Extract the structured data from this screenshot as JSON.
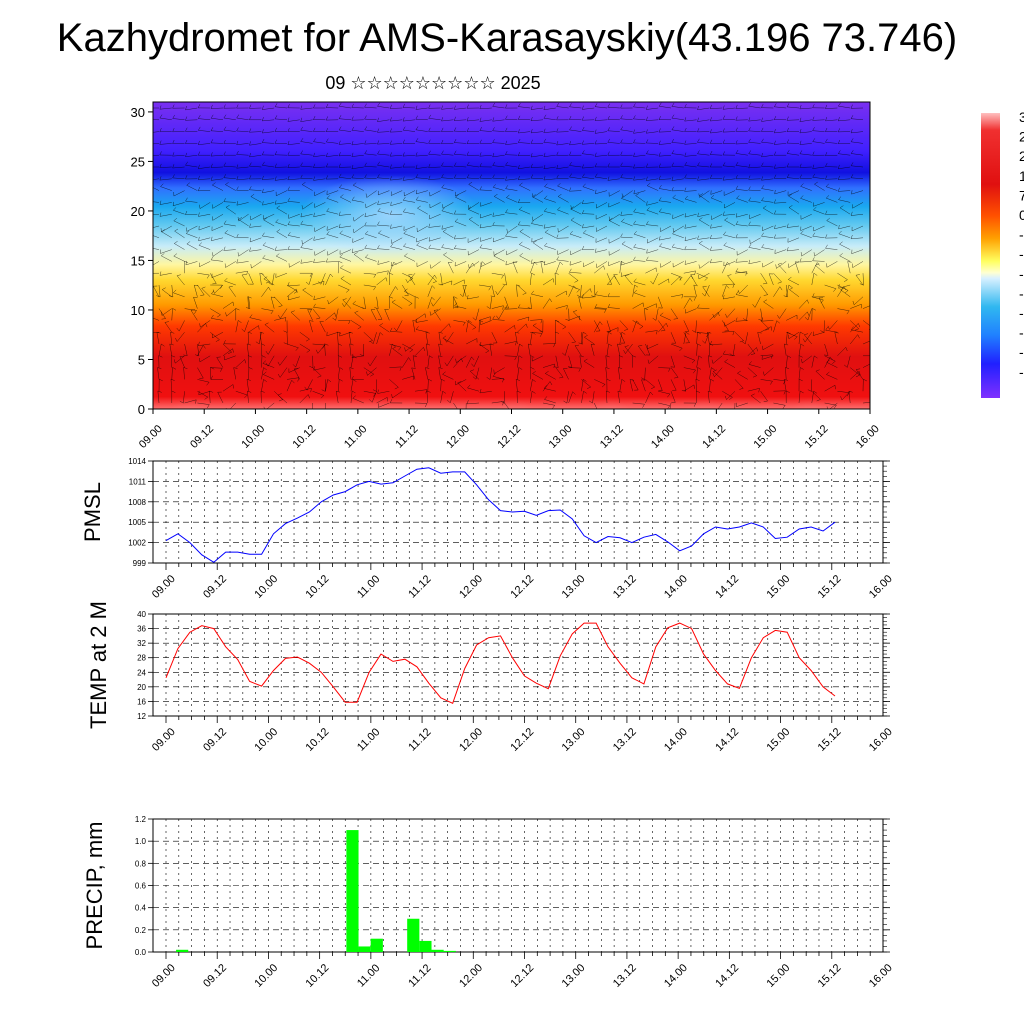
{
  "title": "Kazhydromet for AMS-Karasayskiy(43.196 73.746)",
  "date_line": "09 ☆☆☆☆☆☆☆☆☆ 2025",
  "colors": {
    "pmsl_line": "#0000ff",
    "temp_line": "#ff0000",
    "precip_bar": "#00ff00",
    "grid": "#000000"
  },
  "chart_data": [
    {
      "id": "section",
      "type": "heatmap",
      "x_ticks": [
        "09.00",
        "09.12",
        "10.00",
        "10.12",
        "11.00",
        "11.12",
        "12.00",
        "12.12",
        "13.00",
        "13.12",
        "14.00",
        "14.12",
        "15.00",
        "15.12",
        "16.00"
      ],
      "y_ticks": [
        "0",
        "5",
        "10",
        "15",
        "20",
        "25",
        "30"
      ],
      "ylim": [
        0,
        31
      ],
      "colorbar_labels": [
        "3",
        "2",
        "2",
        "1",
        "7",
        "0",
        "-",
        "-",
        "-",
        "-",
        "-",
        "-",
        "-",
        "-"
      ]
    },
    {
      "id": "pmsl",
      "type": "line",
      "ylabel": "PMSL",
      "ylim": [
        999,
        1014
      ],
      "y_ticks": [
        "999",
        "1002",
        "1005",
        "1008",
        "1011",
        "1014"
      ],
      "x_ticks": [
        "09.00",
        "09.12",
        "10.00",
        "10.12",
        "11.00",
        "11.12",
        "12.00",
        "12.12",
        "13.00",
        "13.12",
        "14.00",
        "14.12",
        "15.00",
        "15.12",
        "16.00"
      ],
      "values": [
        1002.3,
        1003.3,
        1002.0,
        1000.2,
        999.1,
        1000.6,
        1000.6,
        1000.3,
        1000.3,
        1003.3,
        1004.8,
        1005.6,
        1006.5,
        1008.0,
        1009.0,
        1009.5,
        1010.5,
        1011.0,
        1010.6,
        1010.8,
        1011.8,
        1012.8,
        1013.0,
        1012.2,
        1012.4,
        1012.4,
        1010.5,
        1008.3,
        1006.7,
        1006.5,
        1006.6,
        1006.0,
        1006.7,
        1006.8,
        1005.5,
        1003.0,
        1002.0,
        1002.9,
        1002.7,
        1002.0,
        1002.8,
        1003.2,
        1002.1,
        1000.8,
        1001.5,
        1003.3,
        1004.3,
        1004.0,
        1004.3,
        1004.9,
        1004.3,
        1002.6,
        1002.8,
        1004.0,
        1004.3,
        1003.7,
        1005.0
      ]
    },
    {
      "id": "temp",
      "type": "line",
      "ylabel": "TEMP at 2 M",
      "ylim": [
        12,
        40
      ],
      "y_ticks": [
        "12",
        "16",
        "20",
        "24",
        "28",
        "32",
        "36",
        "40"
      ],
      "x_ticks": [
        "09.00",
        "09.12",
        "10.00",
        "10.12",
        "11.00",
        "11.12",
        "12.00",
        "12.12",
        "13.00",
        "13.12",
        "14.00",
        "14.12",
        "15.00",
        "15.12",
        "16.00"
      ],
      "values": [
        22.5,
        30.5,
        35.0,
        36.8,
        36.0,
        31.0,
        27.5,
        21.5,
        20.2,
        24.5,
        27.8,
        28.2,
        26.5,
        24.0,
        20.0,
        15.8,
        15.8,
        24.0,
        29.0,
        27.0,
        27.6,
        25.5,
        21.0,
        17.0,
        15.5,
        25.0,
        31.5,
        33.5,
        34.0,
        28.0,
        23.0,
        21.0,
        19.5,
        28.5,
        34.5,
        37.5,
        37.5,
        31.0,
        26.5,
        22.5,
        20.8,
        31.0,
        36.2,
        37.5,
        36.0,
        29.0,
        24.5,
        20.8,
        19.6,
        28.0,
        33.5,
        35.5,
        35.0,
        28.0,
        24.5,
        20.0,
        17.5
      ]
    },
    {
      "id": "precip",
      "type": "bar",
      "ylabel": "PRECIP, mm",
      "ylim": [
        0,
        1.2
      ],
      "y_ticks": [
        "0.0",
        "0.2",
        "0.4",
        "0.6",
        "0.8",
        "1.0",
        "1.2"
      ],
      "x_ticks": [
        "09.00",
        "09.12",
        "10.00",
        "10.12",
        "11.00",
        "11.12",
        "12.00",
        "12.12",
        "13.00",
        "13.12",
        "14.00",
        "14.12",
        "15.00",
        "15.12",
        "16.00"
      ],
      "values": [
        0,
        0.02,
        0,
        0,
        0,
        0,
        0,
        0,
        0,
        0,
        0,
        0,
        0,
        0,
        0,
        1.1,
        0.05,
        0.12,
        0,
        0,
        0.3,
        0.1,
        0.02,
        0.01,
        0,
        0,
        0,
        0,
        0,
        0,
        0,
        0,
        0,
        0,
        0,
        0,
        0,
        0,
        0,
        0,
        0,
        0,
        0,
        0,
        0,
        0,
        0,
        0,
        0,
        0,
        0,
        0,
        0,
        0,
        0,
        0
      ]
    }
  ]
}
